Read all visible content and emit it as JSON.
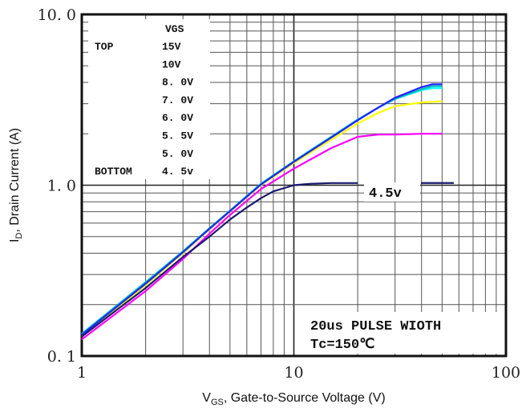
{
  "chart_data": {
    "type": "line",
    "xscale": "log",
    "yscale": "log",
    "xlim": [
      1,
      100
    ],
    "ylim": [
      0.1,
      10.0
    ],
    "grid": true,
    "xlabel_main": "V",
    "xlabel_sub": "GS",
    "xlabel_rest": ", Gate-to-Source Voltage (V)",
    "ylabel_main": "I",
    "ylabel_sub": "D",
    "ylabel_rest": ", Drain Current  (A)",
    "x_ticks": [
      {
        "value": 1,
        "label": "1"
      },
      {
        "value": 10,
        "label": "10"
      },
      {
        "value": 100,
        "label": "100"
      }
    ],
    "y_ticks": [
      {
        "value": 10.0,
        "label": "10. 0"
      },
      {
        "value": 1.0,
        "label": "1. 0"
      },
      {
        "value": 0.1,
        "label": "0. 1"
      }
    ],
    "legend": {
      "header": "VGS",
      "top_label": "TOP",
      "bottom_label": "BOTTOM",
      "entries": [
        "15V",
        "10V",
        "8. 0V",
        "7. 0V",
        "6. 0V",
        "5. 5V",
        "5. 0V",
        "4. 5v"
      ]
    },
    "inline_label": "4.5v",
    "annotation_line1": "20us PULSE WIOTH",
    "annotation_line2": "Tc=150℃",
    "series": [
      {
        "color": "#ff00ff",
        "x": [
          1,
          2,
          3,
          4,
          5,
          7,
          10,
          15,
          20,
          25,
          30,
          40,
          50
        ],
        "y": [
          0.125,
          0.24,
          0.37,
          0.52,
          0.67,
          0.95,
          1.25,
          1.65,
          1.92,
          1.98,
          1.98,
          2.0,
          2.0
        ]
      },
      {
        "color": "#ffff00",
        "x": [
          1,
          2,
          3,
          4,
          5,
          7,
          10,
          15,
          20,
          25,
          30,
          40,
          50
        ],
        "y": [
          0.13,
          0.26,
          0.4,
          0.55,
          0.7,
          1.0,
          1.35,
          1.85,
          2.3,
          2.65,
          2.9,
          3.05,
          3.1
        ]
      },
      {
        "color": "#00ffff",
        "x": [
          1,
          2,
          3,
          4,
          5,
          7,
          10,
          15,
          20,
          25,
          30,
          40,
          45,
          50
        ],
        "y": [
          0.135,
          0.27,
          0.41,
          0.56,
          0.71,
          1.02,
          1.38,
          1.92,
          2.42,
          2.85,
          3.2,
          3.6,
          3.7,
          3.7
        ]
      },
      {
        "color": "#00bbbb",
        "x": [
          1,
          2,
          3,
          4,
          5,
          7,
          10,
          15,
          20,
          25,
          30,
          40,
          45,
          50
        ],
        "y": [
          0.135,
          0.27,
          0.41,
          0.56,
          0.71,
          1.02,
          1.38,
          1.92,
          2.42,
          2.85,
          3.2,
          3.65,
          3.8,
          3.8
        ]
      },
      {
        "color": "#2222ff",
        "x": [
          1,
          2,
          3,
          4,
          5,
          7,
          10,
          15,
          20,
          25,
          30,
          40,
          45,
          50
        ],
        "y": [
          0.133,
          0.265,
          0.405,
          0.555,
          0.705,
          1.01,
          1.37,
          1.9,
          2.4,
          2.85,
          3.25,
          3.75,
          3.9,
          3.9
        ]
      },
      {
        "color": "#1a1a6e",
        "x": [
          1,
          2,
          3,
          4,
          5,
          6,
          7,
          8,
          10,
          12,
          15,
          20
        ],
        "y": [
          0.13,
          0.25,
          0.38,
          0.5,
          0.63,
          0.74,
          0.84,
          0.92,
          1.0,
          1.02,
          1.03,
          1.03
        ]
      }
    ]
  }
}
